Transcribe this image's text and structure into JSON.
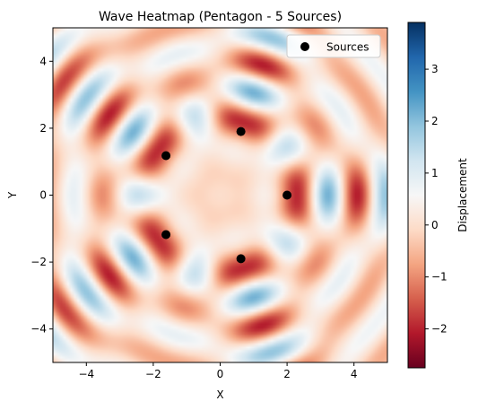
{
  "chart_data": {
    "type": "heatmap",
    "title": "Wave Heatmap (Pentagon - 5 Sources)",
    "xlabel": "X",
    "ylabel": "Y",
    "xlim": [
      -5,
      5
    ],
    "ylim": [
      -5,
      5
    ],
    "x_ticks": [
      -4,
      -2,
      0,
      2,
      4
    ],
    "y_ticks": [
      -4,
      -2,
      0,
      2,
      4
    ],
    "x_tick_labels": [
      "−4",
      "−2",
      "0",
      "2",
      "4"
    ],
    "y_tick_labels": [
      "−4",
      "−2",
      "0",
      "2",
      "4"
    ],
    "colormap": "RdBu",
    "colorbar": {
      "label": "Displacement",
      "min": -2.75,
      "max": 3.9,
      "ticks": [
        -2,
        -1,
        0,
        1,
        2,
        3
      ],
      "tick_labels": [
        "−2",
        "−1",
        "0",
        "1",
        "2",
        "3"
      ]
    },
    "sources": [
      {
        "x": 2.0,
        "y": 0.0
      },
      {
        "x": 0.62,
        "y": 1.9
      },
      {
        "x": -1.62,
        "y": 1.18
      },
      {
        "x": -1.62,
        "y": -1.18
      },
      {
        "x": 0.62,
        "y": -1.9
      }
    ],
    "legend": {
      "entries": [
        "Sources"
      ],
      "placement": "upper right"
    },
    "grid": false
  }
}
